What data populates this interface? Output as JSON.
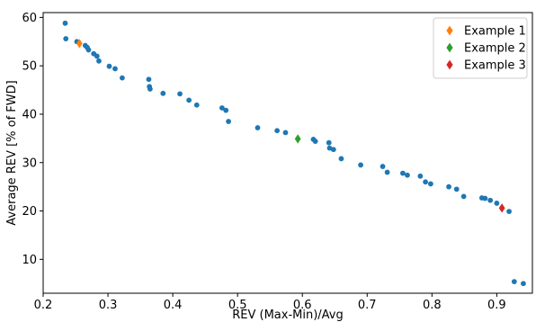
{
  "chart_data": {
    "type": "scatter",
    "title": "",
    "xlabel": "REV (Max-Min)/Avg",
    "ylabel": "Average REV [% of FWD]",
    "xlim": [
      0.2,
      0.955
    ],
    "ylim": [
      3,
      61
    ],
    "xticks": [
      0.2,
      0.3,
      0.4,
      0.5,
      0.6,
      0.7,
      0.8,
      0.9
    ],
    "xtick_labels": [
      "0.2",
      "0.3",
      "0.4",
      "0.5",
      "0.6",
      "0.7",
      "0.8",
      "0.9"
    ],
    "yticks": [
      10,
      20,
      30,
      40,
      50,
      60
    ],
    "ytick_labels": [
      "10",
      "20",
      "30",
      "40",
      "50",
      "60"
    ],
    "grid": false,
    "legend_position": "top-right",
    "series": [
      {
        "color": "#1f77b4",
        "marker": "circle",
        "points": [
          [
            0.234,
            58.8
          ],
          [
            0.235,
            55.6
          ],
          [
            0.252,
            55.0
          ],
          [
            0.265,
            54.2
          ],
          [
            0.268,
            53.8
          ],
          [
            0.27,
            53.3
          ],
          [
            0.278,
            52.5
          ],
          [
            0.283,
            52.0
          ],
          [
            0.286,
            51.0
          ],
          [
            0.302,
            49.9
          ],
          [
            0.311,
            49.4
          ],
          [
            0.322,
            47.5
          ],
          [
            0.363,
            47.2
          ],
          [
            0.364,
            45.7
          ],
          [
            0.365,
            45.2
          ],
          [
            0.385,
            44.3
          ],
          [
            0.411,
            44.2
          ],
          [
            0.425,
            42.9
          ],
          [
            0.437,
            41.9
          ],
          [
            0.476,
            41.3
          ],
          [
            0.482,
            40.8
          ],
          [
            0.486,
            38.5
          ],
          [
            0.531,
            37.2
          ],
          [
            0.561,
            36.6
          ],
          [
            0.574,
            36.2
          ],
          [
            0.617,
            34.8
          ],
          [
            0.62,
            34.4
          ],
          [
            0.641,
            34.1
          ],
          [
            0.642,
            33.0
          ],
          [
            0.648,
            32.7
          ],
          [
            0.66,
            30.8
          ],
          [
            0.69,
            29.5
          ],
          [
            0.724,
            29.2
          ],
          [
            0.731,
            28.0
          ],
          [
            0.755,
            27.8
          ],
          [
            0.762,
            27.4
          ],
          [
            0.782,
            27.2
          ],
          [
            0.79,
            26.0
          ],
          [
            0.798,
            25.6
          ],
          [
            0.826,
            25.0
          ],
          [
            0.838,
            24.5
          ],
          [
            0.849,
            23.0
          ],
          [
            0.877,
            22.7
          ],
          [
            0.882,
            22.6
          ],
          [
            0.89,
            22.2
          ],
          [
            0.9,
            21.6
          ],
          [
            0.919,
            19.9
          ],
          [
            0.927,
            5.4
          ],
          [
            0.941,
            5.0
          ]
        ]
      },
      {
        "name": "Example 1",
        "color": "#ff7f0e",
        "marker": "diamond",
        "points": [
          [
            0.256,
            54.6
          ]
        ]
      },
      {
        "name": "Example 2",
        "color": "#2ca02c",
        "marker": "diamond",
        "points": [
          [
            0.593,
            34.9
          ]
        ]
      },
      {
        "name": "Example 3",
        "color": "#d62728",
        "marker": "diamond",
        "points": [
          [
            0.908,
            20.6
          ]
        ]
      }
    ]
  }
}
